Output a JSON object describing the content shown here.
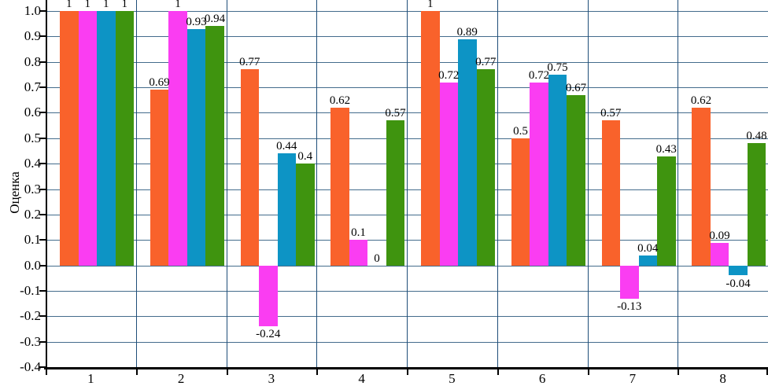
{
  "chart_data": {
    "type": "bar",
    "title": "",
    "xlabel": "",
    "ylabel": "Оценка",
    "categories": [
      "1",
      "2",
      "3",
      "4",
      "5",
      "6",
      "7",
      "8"
    ],
    "series": [
      {
        "color": "#F9622B",
        "values": [
          1,
          0.69,
          0.77,
          0.62,
          1,
          0.5,
          0.57,
          0.62
        ],
        "labels": [
          "1",
          "0.69",
          "0.77",
          "0.62",
          "1",
          "0.5",
          "0.57",
          "0.62"
        ]
      },
      {
        "color": "#FA3DF2",
        "values": [
          1,
          1,
          -0.24,
          0.1,
          0.72,
          0.72,
          -0.13,
          0.09
        ],
        "labels": [
          "1",
          "1",
          "-0.24",
          "0.1",
          "0.72",
          "0.72",
          "-0.13",
          "0.09"
        ]
      },
      {
        "color": "#0D94C5",
        "values": [
          1,
          0.93,
          0.44,
          0,
          0.89,
          0.75,
          0.04,
          -0.04
        ],
        "labels": [
          "1",
          "0.93",
          "0.44",
          "0",
          "0.89",
          "0.75",
          "0.04",
          "-0.04"
        ]
      },
      {
        "color": "#3F940F",
        "values": [
          1,
          0.94,
          0.4,
          0.57,
          0.77,
          0.67,
          0.43,
          0.48
        ],
        "labels": [
          "1",
          "0.94",
          "0.4",
          "0.57",
          "0.77",
          "0.67",
          "0.43",
          "0.48"
        ]
      }
    ],
    "ylim": [
      -0.4,
      1.0
    ],
    "ytick_step": 0.1,
    "ytick_labels": [
      "1.0",
      "0.9",
      "0.8",
      "0.7",
      "0.6",
      "0.5",
      "0.4",
      "0.3",
      "0.2",
      "0.1",
      "0.0",
      "-0.1",
      "-0.2",
      "-0.3",
      "-0.4"
    ],
    "grid": "on",
    "legend": "none",
    "style": {
      "background": "#FFFFFF",
      "horizontal_grid_color": "#446C8C",
      "vertical_grid_color": "#1F4E79",
      "axis_color": "#000000",
      "label_color": "#000000"
    }
  }
}
